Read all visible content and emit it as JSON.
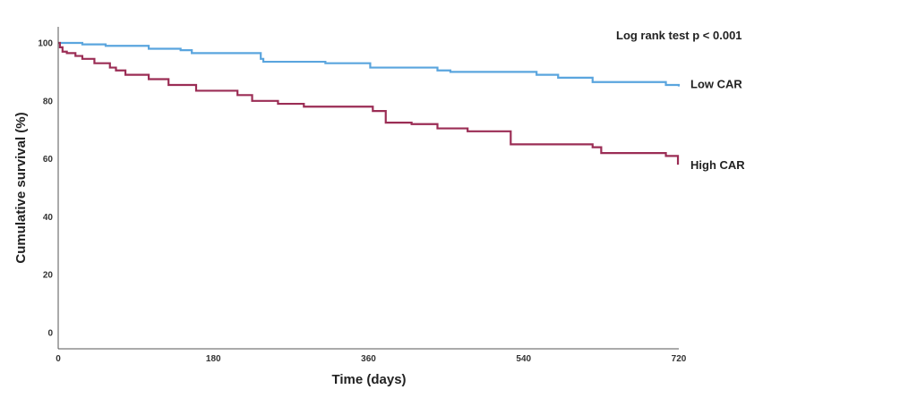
{
  "chart_data": {
    "type": "line",
    "title": "",
    "xlabel": "Time (days)",
    "ylabel": "Cumulative survival (%)",
    "xlim": [
      0,
      720
    ],
    "ylim": [
      0,
      100
    ],
    "xticks": [
      0,
      180,
      360,
      540,
      720
    ],
    "yticks": [
      0,
      20,
      40,
      60,
      80,
      100
    ],
    "grid": false,
    "annotation": "Log rank test p < 0.001",
    "series": [
      {
        "name": "Low CAR",
        "color": "#5aa5de",
        "step": true,
        "x": [
          0,
          28,
          55,
          105,
          142,
          155,
          235,
          238,
          310,
          362,
          440,
          455,
          555,
          580,
          620,
          705,
          720
        ],
        "y": [
          100,
          99.5,
          99,
          98,
          97.5,
          96.5,
          94.5,
          93.5,
          93,
          91.5,
          90.5,
          90,
          89,
          88,
          86.5,
          85.5,
          85
        ]
      },
      {
        "name": "High CAR",
        "color": "#9b2d55",
        "step": true,
        "x": [
          0,
          2,
          5,
          10,
          20,
          28,
          42,
          60,
          67,
          78,
          105,
          128,
          160,
          208,
          225,
          255,
          285,
          365,
          380,
          410,
          440,
          475,
          525,
          620,
          630,
          705,
          719
        ],
        "y": [
          100,
          98.5,
          97,
          96.5,
          95.5,
          94.5,
          93,
          91.5,
          90.5,
          89,
          87.5,
          85.5,
          83.5,
          82,
          80,
          79,
          78,
          76.5,
          72.5,
          72,
          70.5,
          69.5,
          65,
          64,
          62,
          61,
          58
        ]
      }
    ]
  }
}
